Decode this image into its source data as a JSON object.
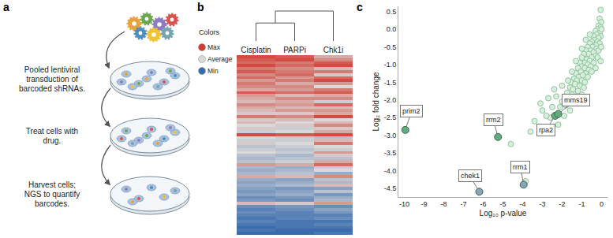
{
  "diagram": {
    "panel": "a",
    "steps": [
      {
        "lines": [
          "Pooled lentiviral",
          "transduction of",
          "barcoded shRNAs."
        ]
      },
      {
        "lines": [
          "Treat cells with",
          "drug."
        ]
      },
      {
        "lines": [
          "Harvest cells;",
          "NGS to quantify",
          "barcodes."
        ]
      }
    ]
  },
  "chart_data": [
    {
      "panel": "b",
      "type": "heatmap",
      "columns": [
        "Cisplatin",
        "PARPi",
        "Chk1i"
      ],
      "tick_labels": "x",
      "zlim": [
        -1,
        1
      ],
      "legend_title": "Colors",
      "color_legend": [
        {
          "label": "Max",
          "value": 1,
          "color": "#d23b2f"
        },
        {
          "label": "Average",
          "value": 0,
          "color": "#d9d9d9"
        },
        {
          "label": "Min",
          "value": -1,
          "color": "#3a6cad"
        }
      ],
      "column_dendrogram": [
        {
          "columns": [
            0,
            1
          ],
          "height": 0.6
        },
        {
          "columns": [
            0,
            1,
            2
          ],
          "height": 1
        }
      ],
      "rows": [
        [
          0.9,
          0.8,
          0.3
        ],
        [
          0.8,
          0.9,
          0.5
        ],
        [
          0.7,
          0.6,
          0.8
        ],
        [
          0.9,
          0.7,
          0.9
        ],
        [
          0.6,
          0.5,
          0.2
        ],
        [
          0.8,
          0.6,
          0.6
        ],
        [
          0.5,
          0.7,
          0.1
        ],
        [
          0.7,
          0.4,
          0.7
        ],
        [
          0.4,
          0.6,
          0.9
        ],
        [
          0.6,
          0.3,
          0.4
        ],
        [
          0.5,
          0.5,
          0.0
        ],
        [
          0.3,
          0.4,
          0.6
        ],
        [
          0.8,
          0.7,
          0.8
        ],
        [
          0.4,
          0.2,
          0.3
        ],
        [
          0.3,
          0.5,
          0.5
        ],
        [
          0.2,
          0.3,
          -0.1
        ],
        [
          0.5,
          0.4,
          0.7
        ],
        [
          0.3,
          0.2,
          0.2
        ],
        [
          0.2,
          0.4,
          0.4
        ],
        [
          0.1,
          0.1,
          0.3
        ],
        [
          0.6,
          0.5,
          0.9
        ],
        [
          0.1,
          0.2,
          0.0
        ],
        [
          0.2,
          0.0,
          0.2
        ],
        [
          0.0,
          0.1,
          0.5
        ],
        [
          0.1,
          -0.1,
          0.1
        ],
        [
          -0.1,
          0.0,
          0.3
        ],
        [
          0.9,
          0.8,
          0.9
        ],
        [
          0.0,
          0.1,
          -0.2
        ],
        [
          -0.1,
          -0.1,
          0.2
        ],
        [
          0.1,
          0.0,
          0.6
        ],
        [
          -0.2,
          -0.1,
          0.0
        ],
        [
          -0.1,
          -0.2,
          -0.1
        ],
        [
          0.0,
          -0.1,
          0.4
        ],
        [
          -0.2,
          -0.3,
          0.1
        ],
        [
          -0.3,
          -0.2,
          -0.2
        ],
        [
          -0.2,
          -0.1,
          0.3
        ],
        [
          0.4,
          0.3,
          0.7
        ],
        [
          -0.3,
          -0.4,
          -0.1
        ],
        [
          -0.4,
          -0.3,
          0.0
        ],
        [
          -0.3,
          -0.2,
          -0.4
        ],
        [
          0.3,
          0.2,
          0.5
        ],
        [
          -0.4,
          -0.5,
          -0.2
        ],
        [
          -0.5,
          -0.4,
          -0.3
        ],
        [
          -0.4,
          -0.3,
          0.2
        ],
        [
          -0.5,
          -0.6,
          -0.5
        ],
        [
          -0.6,
          -0.5,
          -0.2
        ],
        [
          -0.5,
          -0.4,
          -0.6
        ],
        [
          -0.7,
          -0.6,
          -0.4
        ],
        [
          -0.6,
          -0.7,
          -0.3
        ],
        [
          0.2,
          0.1,
          0.4
        ],
        [
          -0.7,
          -0.6,
          -0.7
        ],
        [
          -0.8,
          -0.7,
          -0.5
        ],
        [
          -0.7,
          -0.8,
          -0.6
        ],
        [
          -0.8,
          -0.8,
          -0.8
        ],
        [
          -0.9,
          -0.8,
          -0.7
        ],
        [
          -0.8,
          -0.9,
          -0.9
        ],
        [
          -0.9,
          -0.9,
          -0.8
        ],
        [
          -1.0,
          -0.9,
          -0.9
        ],
        [
          -0.9,
          -1.0,
          -1.0
        ],
        [
          -1.0,
          -1.0,
          -0.9
        ]
      ]
    },
    {
      "panel": "c",
      "type": "scatter",
      "x_label": "Log₁₀ p-value",
      "y_label": "Log₂ fold change",
      "xlim": [
        -10.3,
        0.3
      ],
      "ylim": [
        -4.75,
        0.65
      ],
      "xticks": [
        -10,
        -9,
        -8,
        -7,
        -6,
        -5,
        -4,
        -3,
        -2,
        -1,
        0
      ],
      "yticks": [
        0.5,
        {
          "value": 0,
          "label": "0.0"
        },
        -0.5,
        {
          "value": -1,
          "label": "-1.0"
        },
        -1.5,
        {
          "value": -2,
          "label": "-2.0"
        },
        -2.5,
        {
          "value": -3,
          "label": "-3.0"
        },
        -3.5,
        {
          "value": -4,
          "label": "-4.0"
        },
        -4.5
      ],
      "grid": false,
      "marker": "circle",
      "color": "#d9eedd",
      "x": [
        -0.05,
        -0.1,
        -0.02,
        -0.15,
        -0.05,
        -0.2,
        -0.3,
        -0.1,
        -0.25,
        -0.4,
        -0.05,
        -0.15,
        -0.35,
        -0.5,
        -0.2,
        -0.1,
        -0.3,
        -0.6,
        -0.45,
        -0.7,
        -0.25,
        -0.55,
        -0.8,
        -0.4,
        -0.15,
        -0.65,
        -0.9,
        -0.3,
        -0.5,
        -0.75,
        -1.0,
        -0.2,
        -0.6,
        -0.85,
        -1.1,
        -0.4,
        -0.7,
        -1.0,
        -0.55,
        -1.2,
        -0.85,
        -0.3,
        -0.65,
        -1.05,
        -1.3,
        -0.8,
        -0.5,
        -1.15,
        -0.95,
        -1.4,
        -0.7,
        -1.25,
        -1.0,
        -1.55,
        -0.85,
        -1.35,
        -1.1,
        -1.6,
        -1.45,
        -0.9,
        -1.2,
        -1.75,
        -1.5,
        -1.3,
        -1.85,
        -1.0,
        -1.6,
        -2.0,
        -1.4,
        -1.8,
        -2.1,
        -1.6,
        -2.3,
        -2.5,
        -1.9,
        -2.6,
        -2.2,
        -2.8,
        -3.0,
        -2.9,
        -3.1,
        -2.4,
        -2.7,
        -3.4,
        -3.6,
        -4.6,
        -3.85,
        0,
        -0.6,
        -0.8,
        -1.0,
        -1.3,
        -1.5,
        -1.7,
        -2.0,
        -0.02,
        -0.05
      ],
      "y": [
        0.55,
        0.3,
        0.2,
        0.1,
        0.05,
        0.0,
        -0.05,
        -0.1,
        -0.15,
        -0.2,
        -0.2,
        -0.25,
        -0.3,
        -0.35,
        -0.35,
        -0.4,
        -0.45,
        -0.4,
        -0.5,
        -0.5,
        -0.55,
        -0.6,
        -0.6,
        -0.65,
        -0.6,
        -0.7,
        -0.7,
        -0.75,
        -0.8,
        -0.85,
        -0.8,
        -0.8,
        -0.9,
        -0.95,
        -0.95,
        -0.95,
        -1.0,
        -1.05,
        -1.05,
        -1.1,
        -1.1,
        -1.1,
        -1.15,
        -1.2,
        -1.25,
        -1.25,
        -1.2,
        -1.35,
        -1.3,
        -1.4,
        -1.35,
        -1.45,
        -1.45,
        -1.5,
        -1.5,
        -1.55,
        -1.6,
        -1.65,
        -1.7,
        -1.65,
        -1.75,
        -1.8,
        -1.85,
        -1.9,
        -1.95,
        -1.85,
        -2.0,
        -2.05,
        -2.1,
        -2.15,
        -2.2,
        -2.3,
        -1.9,
        -2.2,
        -2.45,
        -2.5,
        -2.7,
        -2.45,
        -2.3,
        -2.85,
        -2.1,
        -1.7,
        -1.95,
        -2.6,
        -2.9,
        -3.25,
        -4.3,
        0.0,
        -0.15,
        -0.3,
        -0.55,
        -0.9,
        -1.2,
        -1.45,
        -1.6,
        -0.5,
        -0.9
      ],
      "highlighted": {
        "labels": [
          "prim2",
          "rrm2",
          "chek1",
          "rrm1",
          "rpa2",
          "mms19"
        ],
        "x": [
          -9.95,
          -5.25,
          -6.2,
          -3.95,
          -2.35,
          -2.2
        ],
        "y": [
          -2.85,
          -3.05,
          -4.6,
          -4.4,
          -2.45,
          -2.4
        ],
        "colors": [
          "#5fae7e",
          "#5fae7e",
          "#86a6b8",
          "#86a6b8",
          "#5fae7e",
          "#5fae7e"
        ]
      }
    }
  ]
}
